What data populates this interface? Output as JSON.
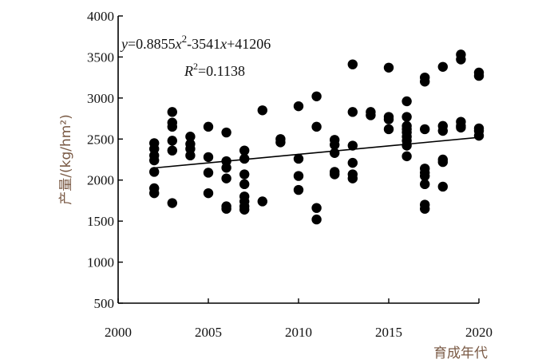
{
  "chart_data": {
    "type": "scatter",
    "xlabel": "育成年代",
    "ylabel": "产量/(kg/hm²)",
    "xlim": [
      2000,
      2020
    ],
    "ylim": [
      500,
      4000
    ],
    "xticks": [
      2000,
      2005,
      2010,
      2015,
      2020
    ],
    "yticks": [
      500,
      1000,
      1500,
      2000,
      2500,
      3000,
      3500,
      4000
    ],
    "grid": false,
    "equation": {
      "y_var": "y",
      "eq1": "=0.8855",
      "x_var1": "x",
      "sup": "2",
      "eq2": "-3541",
      "x_var2": "x",
      "eq3": "+41206"
    },
    "r2": {
      "r": "R",
      "sup": "2",
      "value": "=0.1138"
    },
    "trendline": {
      "x": [
        2002,
        2020
      ],
      "y": [
        2148,
        2520
      ]
    },
    "marker_color": "#000000",
    "points": [
      [
        2002,
        2450
      ],
      [
        2002,
        2380
      ],
      [
        2002,
        2300
      ],
      [
        2002,
        2240
      ],
      [
        2002,
        2100
      ],
      [
        2002,
        1900
      ],
      [
        2002,
        1840
      ],
      [
        2003,
        2830
      ],
      [
        2003,
        2700
      ],
      [
        2003,
        2650
      ],
      [
        2003,
        2480
      ],
      [
        2003,
        2360
      ],
      [
        2003,
        1720
      ],
      [
        2004,
        2530
      ],
      [
        2004,
        2440
      ],
      [
        2004,
        2380
      ],
      [
        2004,
        2300
      ],
      [
        2005,
        2650
      ],
      [
        2005,
        2280
      ],
      [
        2005,
        2090
      ],
      [
        2005,
        1840
      ],
      [
        2006,
        2580
      ],
      [
        2006,
        2230
      ],
      [
        2006,
        2150
      ],
      [
        2006,
        2020
      ],
      [
        2006,
        1680
      ],
      [
        2006,
        1650
      ],
      [
        2007,
        2360
      ],
      [
        2007,
        2260
      ],
      [
        2007,
        2070
      ],
      [
        2007,
        1950
      ],
      [
        2007,
        1800
      ],
      [
        2007,
        1740
      ],
      [
        2007,
        1680
      ],
      [
        2007,
        1640
      ],
      [
        2008,
        2850
      ],
      [
        2008,
        1740
      ],
      [
        2009,
        2500
      ],
      [
        2009,
        2460
      ],
      [
        2010,
        2900
      ],
      [
        2010,
        2260
      ],
      [
        2010,
        2050
      ],
      [
        2010,
        1880
      ],
      [
        2011,
        3020
      ],
      [
        2011,
        2650
      ],
      [
        2011,
        1660
      ],
      [
        2011,
        1520
      ],
      [
        2012,
        2490
      ],
      [
        2012,
        2430
      ],
      [
        2012,
        2330
      ],
      [
        2012,
        2100
      ],
      [
        2012,
        2070
      ],
      [
        2013,
        3410
      ],
      [
        2013,
        2830
      ],
      [
        2013,
        2420
      ],
      [
        2013,
        2210
      ],
      [
        2013,
        2070
      ],
      [
        2013,
        2020
      ],
      [
        2014,
        2830
      ],
      [
        2014,
        2790
      ],
      [
        2015,
        3370
      ],
      [
        2015,
        2770
      ],
      [
        2015,
        2740
      ],
      [
        2015,
        2620
      ],
      [
        2016,
        2960
      ],
      [
        2016,
        2770
      ],
      [
        2016,
        2660
      ],
      [
        2016,
        2620
      ],
      [
        2016,
        2580
      ],
      [
        2016,
        2530
      ],
      [
        2016,
        2480
      ],
      [
        2016,
        2420
      ],
      [
        2016,
        2290
      ],
      [
        2017,
        3250
      ],
      [
        2017,
        3200
      ],
      [
        2017,
        2620
      ],
      [
        2017,
        2140
      ],
      [
        2017,
        2090
      ],
      [
        2017,
        2050
      ],
      [
        2017,
        1950
      ],
      [
        2017,
        1700
      ],
      [
        2017,
        1650
      ],
      [
        2018,
        3380
      ],
      [
        2018,
        2660
      ],
      [
        2018,
        2600
      ],
      [
        2018,
        2250
      ],
      [
        2018,
        2220
      ],
      [
        2018,
        1920
      ],
      [
        2019,
        3530
      ],
      [
        2019,
        3470
      ],
      [
        2019,
        2710
      ],
      [
        2019,
        2660
      ],
      [
        2019,
        2640
      ],
      [
        2020,
        3310
      ],
      [
        2020,
        3270
      ],
      [
        2020,
        2630
      ],
      [
        2020,
        2600
      ],
      [
        2020,
        2540
      ]
    ]
  }
}
